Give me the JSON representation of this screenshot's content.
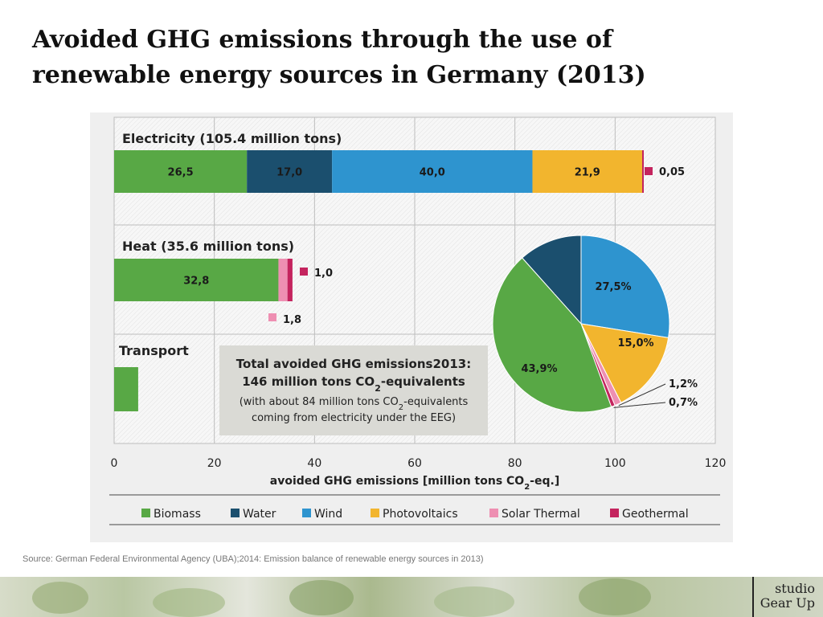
{
  "slide": {
    "title": "Avoided GHG emissions through the use of renewable energy sources in Germany (2013)",
    "source": "Source: German Federal Environmental Agency (UBA);2014: Emission balance of renewable energy sources in 2013)",
    "logo_line1": "studio",
    "logo_line2": "Gear Up"
  },
  "colors": {
    "Biomass": "#58a845",
    "Water": "#1b4f6e",
    "Wind": "#2e94cf",
    "Photovoltaics": "#f2b52e",
    "Solar Thermal": "#ee8fb2",
    "Geothermal": "#c4245e"
  },
  "chart_data": [
    {
      "type": "bar",
      "orientation": "horizontal",
      "stacked": true,
      "xlabel_pre": "avoided GHG emissions [million tons CO",
      "xlabel_sub": "2",
      "xlabel_post": "-eq.]",
      "xlim": [
        0,
        120
      ],
      "xticks": [
        "0",
        "20",
        "40",
        "60",
        "80",
        "100",
        "120"
      ],
      "grid": true,
      "legend_position": "bottom",
      "legend": [
        "Biomass",
        "Water",
        "Wind",
        "Photovoltaics",
        "Solar Thermal",
        "Geothermal"
      ],
      "groups": [
        {
          "label": "Electricity (105.4 million tons)",
          "segments": [
            {
              "source": "Biomass",
              "value": 26.5,
              "label": "26,5"
            },
            {
              "source": "Water",
              "value": 17.0,
              "label": "17,0"
            },
            {
              "source": "Wind",
              "value": 40.0,
              "label": "40,0"
            },
            {
              "source": "Photovoltaics",
              "value": 21.9,
              "label": "21,9"
            },
            {
              "source": "Geothermal",
              "value": 0.05,
              "label": "0,05"
            }
          ]
        },
        {
          "label": "Heat (35.6 million tons)",
          "segments": [
            {
              "source": "Biomass",
              "value": 32.8,
              "label": "32,8"
            },
            {
              "source": "Solar Thermal",
              "value": 1.8,
              "label": "1,8"
            },
            {
              "source": "Geothermal",
              "value": 1.0,
              "label": "1,0"
            }
          ]
        },
        {
          "label": "Transport",
          "segments": [
            {
              "source": "Biomass",
              "value": 4.8,
              "label": "4,8"
            }
          ]
        }
      ],
      "total_box": {
        "line1": "Total avoided GHG emissions2013:",
        "line2_pre": "146 million tons CO",
        "line2_sub": "2",
        "line2_post": "-equivalents",
        "line3_pre": "(with about 84 million tons CO",
        "line3_sub": "2",
        "line3_post": "-equivalents",
        "line4": "coming from electricity under the EEG)"
      }
    },
    {
      "type": "pie",
      "slices": [
        {
          "source": "Water",
          "value": 11.6,
          "label": "11,6%"
        },
        {
          "source": "Wind",
          "value": 27.5,
          "label": "27,5%"
        },
        {
          "source": "Photovoltaics",
          "value": 15.0,
          "label": "15,0%"
        },
        {
          "source": "Solar Thermal",
          "value": 1.2,
          "label": "1,2%"
        },
        {
          "source": "Geothermal",
          "value": 0.7,
          "label": "0,7%"
        },
        {
          "source": "Biomass",
          "value": 43.9,
          "label": "43,9%"
        }
      ]
    }
  ]
}
